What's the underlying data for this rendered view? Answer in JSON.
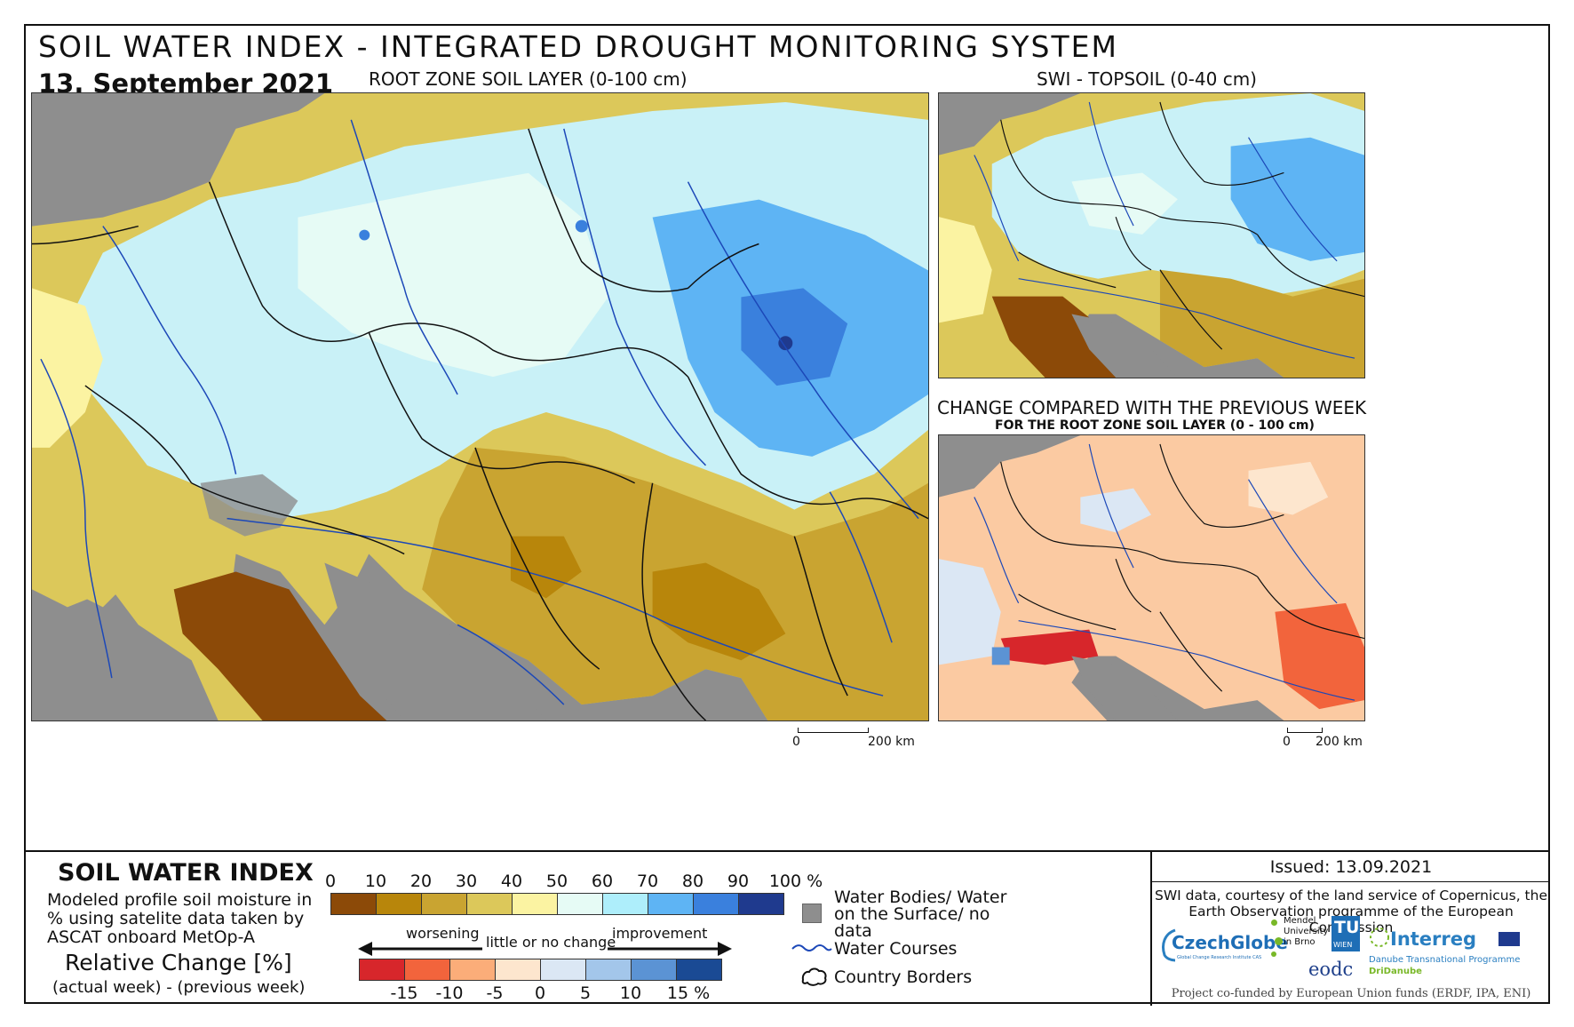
{
  "header": {
    "title": "SOIL WATER INDEX - INTEGRATED DROUGHT MONITORING SYSTEM",
    "date": "13. September 2021",
    "main_map_title": "ROOT ZONE SOIL LAYER (0-100 cm)",
    "topsoil_title": "SWI - TOPSOIL (0-40 cm)",
    "change_title": "CHANGE COMPARED WITH THE PREVIOUS WEEK",
    "change_subtitle": "FOR THE ROOT ZONE SOIL LAYER (0 - 100 cm)"
  },
  "scalebars": {
    "main": {
      "start": "0",
      "end": "200 km"
    },
    "small": {
      "start": "0",
      "end": "200 km"
    }
  },
  "legend": {
    "swi_title": "SOIL WATER INDEX",
    "swi_description": "Modeled profile soil moisture in % using satelite data taken by ASCAT onboard MetOp-A",
    "relative_title": "Relative Change [%]",
    "relative_desc": "(actual week) - (previous week)",
    "swi_ticks": [
      "0",
      "10",
      "20",
      "30",
      "40",
      "50",
      "60",
      "70",
      "80",
      "90",
      "100 %"
    ],
    "swi_colors": [
      "#8c4a08",
      "#b8860b",
      "#c9a431",
      "#dcc85a",
      "#fbf3a2",
      "#e6fbf5",
      "#aeeefb",
      "#5eb4f4",
      "#3a80dd",
      "#1f3a8e"
    ],
    "change_ticks": [
      "-15",
      "-10",
      "-5",
      "0",
      "5",
      "10",
      "15 %"
    ],
    "change_colors": [
      "#d7262b",
      "#f2643c",
      "#fbad79",
      "#fde6ce",
      "#dbe7f4",
      "#a3c6ea",
      "#5b93d4",
      "#1a4a94"
    ],
    "worsening": "worsening",
    "little_change": "little or no change",
    "improvement": "improvement",
    "water_bodies": "Water Bodies/ Water on the Surface/ no data",
    "water_courses": "Water Courses",
    "country_borders": "Country Borders"
  },
  "info": {
    "issued": "Issued: 13.09.2021",
    "credit": "SWI data, courtesy of the land service of Copernicus, the Earth Observation programme of the European Commission",
    "funding": "Project co-funded by European Union funds (ERDF, IPA, ENI)"
  },
  "logos": {
    "czechglobe": "CzechGlobe",
    "czechglobe_sub": "Global Change Research Institute CAS",
    "mendel": "Mendel University in Brno",
    "tu": "TU",
    "wien": "WIEN",
    "eodc": "eodc",
    "interreg": "Interreg",
    "interreg_sub1": "Danube Transnational Programme",
    "interreg_sub2": "DriDanube"
  },
  "colors": {
    "no_data": "#8e8e8e",
    "water_course": "#1c48b8",
    "border": "#111111"
  }
}
